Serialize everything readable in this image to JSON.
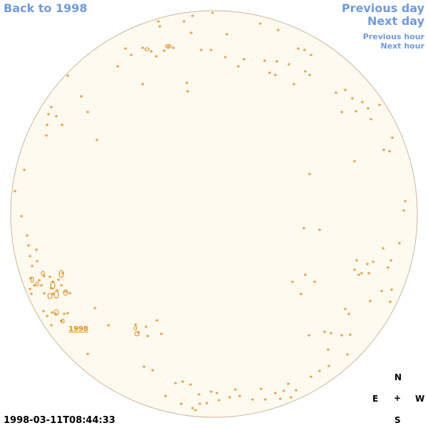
{
  "nav": {
    "back": "Back to 1998",
    "prev_day": "Previous day",
    "next_day": "Next day",
    "prev_hour": "Previous hour",
    "next_hour": "Next hour"
  },
  "timestamp": "1998-03-11T08:44:33",
  "compass": {
    "n": "N",
    "e": "E",
    "plus": "+",
    "w": "W",
    "s": "S"
  },
  "region_label": "1998",
  "colors": {
    "disk_fill": "#fffaf0",
    "disk_stroke": "#c8b89a",
    "contour": "#e08f1f",
    "link": "#6f9be0"
  }
}
